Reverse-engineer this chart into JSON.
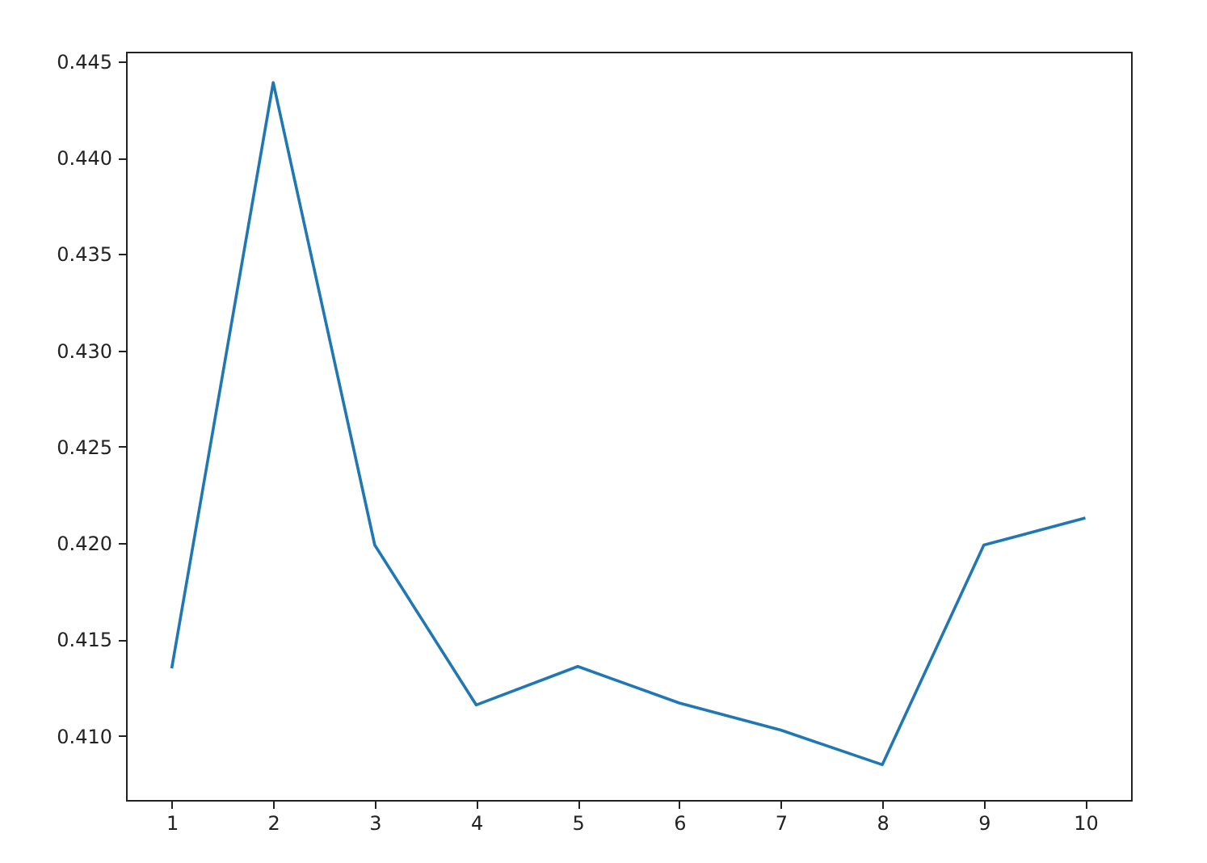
{
  "chart_data": {
    "type": "line",
    "x": [
      1,
      2,
      3,
      4,
      5,
      6,
      7,
      8,
      9,
      10
    ],
    "series": [
      {
        "color": "#1f77b4",
        "values": [
          0.4135,
          0.4439,
          0.4199,
          0.4116,
          0.4136,
          0.4117,
          0.4103,
          0.4085,
          0.4199,
          0.4213
        ]
      }
    ],
    "xlim": [
      0.55,
      10.45
    ],
    "xticks": [
      1,
      2,
      3,
      4,
      5,
      6,
      7,
      8,
      9,
      10
    ],
    "ylim": [
      0.40667,
      0.4455
    ],
    "yticks": [
      {
        "value": 0.41,
        "label": "0.410"
      },
      {
        "value": 0.415,
        "label": "0.415"
      },
      {
        "value": 0.42,
        "label": "0.420"
      },
      {
        "value": 0.425,
        "label": "0.425"
      },
      {
        "value": 0.43,
        "label": "0.430"
      },
      {
        "value": 0.435,
        "label": "0.435"
      },
      {
        "value": 0.44,
        "label": "0.440"
      },
      {
        "value": 0.445,
        "label": "0.445"
      }
    ],
    "grid": false,
    "marker": "none",
    "line_style": "solid"
  }
}
